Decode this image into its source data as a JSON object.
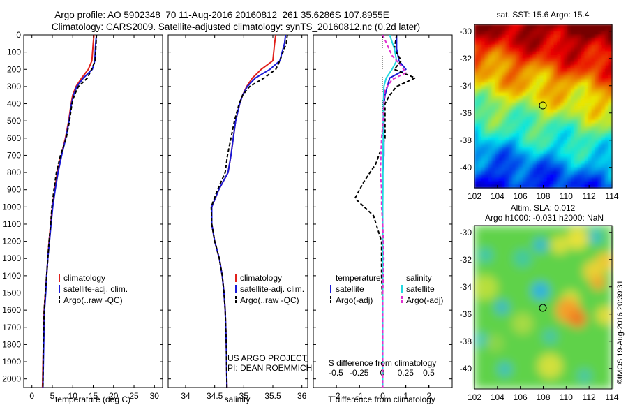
{
  "header": {
    "line1": "Argo profile: AO 5902348_70 11-Aug-2016 20160812_261 35.6286S 107.8955E",
    "line2": "Climatology: CARS2009. Satellite-adjusted climatology: synTS_20160812.nc (0.2d later)"
  },
  "colors": {
    "climatology": "#e0201b",
    "satellite": "#1a1ad6",
    "argo": "#000000",
    "salinity_sat": "#22d8e0",
    "salinity_argo": "#e030d0"
  },
  "chart_data": [
    {
      "id": "temperature",
      "type": "line",
      "xlabel": "temperature (deg C)",
      "ylabel": "",
      "xlim": [
        -2,
        32
      ],
      "ylim": [
        2050,
        0
      ],
      "xticks": [
        0,
        5,
        10,
        15,
        20,
        25,
        30
      ],
      "yticks": [
        0,
        100,
        200,
        300,
        400,
        500,
        600,
        700,
        800,
        900,
        1000,
        1100,
        1200,
        1300,
        1400,
        1500,
        1600,
        1700,
        1800,
        1900,
        2000
      ],
      "legend": [
        "climatology",
        "satellite-adj. clim.",
        "Argo(..raw -QC)"
      ],
      "legend_placement": "lower-center",
      "series": [
        {
          "name": "climatology",
          "color_key": "climatology",
          "dash": "solid",
          "x": [
            15.2,
            15.0,
            14.7,
            13.8,
            12.2,
            10.8,
            10.0,
            9.6,
            9.0,
            8.2,
            7.2,
            6.2,
            5.6,
            5.0,
            4.6,
            4.2,
            3.9,
            3.6,
            3.3,
            3.0,
            2.8,
            2.6
          ],
          "y": [
            0,
            50,
            150,
            200,
            250,
            300,
            350,
            400,
            500,
            600,
            700,
            800,
            900,
            1000,
            1100,
            1200,
            1300,
            1400,
            1500,
            1600,
            1800,
            2050
          ]
        },
        {
          "name": "satellite-adj. clim.",
          "color_key": "satellite",
          "dash": "solid",
          "x": [
            15.8,
            15.6,
            15.4,
            14.8,
            12.6,
            11.0,
            10.2,
            9.7,
            9.1,
            8.3,
            7.3,
            6.4,
            5.7,
            5.1,
            4.7,
            4.3,
            3.9,
            3.6,
            3.4,
            3.1,
            2.9,
            2.7
          ],
          "y": [
            0,
            50,
            150,
            200,
            250,
            300,
            350,
            400,
            500,
            600,
            700,
            800,
            900,
            1000,
            1100,
            1200,
            1300,
            1400,
            1500,
            1600,
            1800,
            2050
          ]
        },
        {
          "name": "Argo(..raw -QC)",
          "color_key": "argo",
          "dash": "dash",
          "x": [
            15.8,
            15.7,
            15.5,
            14.6,
            13.6,
            11.4,
            10.4,
            9.8,
            9.2,
            8.4,
            7.0,
            6.0,
            5.4,
            4.9,
            4.6,
            4.2,
            3.9,
            3.6,
            3.3,
            3.0,
            2.8,
            2.7
          ],
          "y": [
            0,
            50,
            150,
            200,
            250,
            300,
            350,
            400,
            500,
            600,
            700,
            800,
            900,
            1000,
            1100,
            1200,
            1300,
            1400,
            1500,
            1600,
            1800,
            2050
          ]
        }
      ]
    },
    {
      "id": "salinity",
      "type": "line",
      "xlabel": "salinity",
      "ylabel": "",
      "xlim": [
        33.7,
        36.1
      ],
      "ylim": [
        2050,
        0
      ],
      "xticks": [
        34,
        34.5,
        35,
        35.5,
        36
      ],
      "legend": [
        "climatology",
        "satellite-adj. clim.",
        "Argo(..raw -QC)"
      ],
      "legend_placement": "lower-center",
      "annotation": [
        "US ARGO PROJECT",
        "PI: DEAN ROEMMICH"
      ],
      "series": [
        {
          "name": "climatology",
          "color_key": "climatology",
          "dash": "solid",
          "x": [
            35.55,
            35.53,
            35.5,
            35.3,
            35.15,
            35.05,
            34.98,
            34.93,
            34.86,
            34.82,
            34.78,
            34.73,
            34.57,
            34.45,
            34.45,
            34.5,
            34.58,
            34.63,
            34.66,
            34.68,
            34.7,
            34.71
          ],
          "y": [
            0,
            50,
            150,
            200,
            250,
            300,
            350,
            400,
            500,
            600,
            700,
            800,
            900,
            1000,
            1100,
            1200,
            1300,
            1400,
            1500,
            1600,
            1800,
            2050
          ]
        },
        {
          "name": "satellite-adj. clim.",
          "color_key": "satellite",
          "dash": "solid",
          "x": [
            35.72,
            35.7,
            35.62,
            35.45,
            35.2,
            35.06,
            34.98,
            34.93,
            34.86,
            34.82,
            34.78,
            34.73,
            34.57,
            34.45,
            34.45,
            34.5,
            34.58,
            34.63,
            34.66,
            34.68,
            34.7,
            34.71
          ],
          "y": [
            0,
            50,
            150,
            200,
            250,
            300,
            350,
            400,
            500,
            600,
            700,
            800,
            900,
            1000,
            1100,
            1200,
            1300,
            1400,
            1500,
            1600,
            1800,
            2050
          ]
        },
        {
          "name": "Argo(..raw -QC)",
          "color_key": "argo",
          "dash": "dash",
          "x": [
            35.75,
            35.73,
            35.62,
            35.55,
            35.35,
            35.1,
            34.98,
            34.92,
            34.84,
            34.78,
            34.72,
            34.68,
            34.55,
            34.44,
            34.45,
            34.5,
            34.58,
            34.63,
            34.66,
            34.68,
            34.7,
            34.71
          ],
          "y": [
            0,
            50,
            150,
            200,
            250,
            300,
            350,
            400,
            500,
            600,
            700,
            800,
            900,
            1000,
            1100,
            1200,
            1300,
            1400,
            1500,
            1600,
            1800,
            2050
          ]
        }
      ]
    },
    {
      "id": "difference",
      "type": "line",
      "xlabel": "T difference from climatology",
      "top_label": "S difference from climatology",
      "ylabel": "",
      "xlim": [
        -3,
        3
      ],
      "ylim": [
        2050,
        0
      ],
      "xticks": [
        -2,
        -1,
        0,
        1,
        2
      ],
      "top_ticks": [
        -0.5,
        -0.25,
        0,
        0.25,
        0.5
      ],
      "top_tick_labels": [
        "-0.5",
        "-0.25",
        "0",
        "0.25",
        "0.5"
      ],
      "legend_groups": [
        {
          "title": "temperature",
          "items": [
            "satellite",
            "Argo(-adj)"
          ]
        },
        {
          "title": "salinity",
          "items": [
            "satellite",
            "Argo(-adj)"
          ]
        }
      ],
      "series": [
        {
          "name": "temperature satellite",
          "color_key": "satellite",
          "dash": "solid",
          "x": [
            0.6,
            0.6,
            0.7,
            1.0,
            0.3,
            0.2,
            0.1,
            0.05,
            0.05,
            0.05,
            0.05,
            0.0,
            0.0,
            0.0,
            0.0,
            0.0,
            0.0,
            0.0,
            0.0
          ],
          "y": [
            0,
            80,
            150,
            200,
            250,
            300,
            350,
            400,
            500,
            600,
            700,
            800,
            900,
            1000,
            1200,
            1400,
            1600,
            1800,
            2050
          ]
        },
        {
          "name": "temperature Argo(-adj)",
          "color_key": "argo",
          "dash": "dash",
          "x": [
            0.6,
            0.5,
            0.8,
            0.5,
            1.4,
            0.6,
            0.3,
            0.1,
            0.1,
            0.1,
            -0.3,
            -0.8,
            -1.2,
            -0.4,
            -0.05,
            -0.05,
            0.0,
            0.0,
            0.0
          ],
          "y": [
            0,
            80,
            150,
            200,
            250,
            300,
            350,
            400,
            500,
            600,
            750,
            850,
            950,
            1050,
            1200,
            1400,
            1600,
            1800,
            2050
          ]
        },
        {
          "name": "salinity satellite",
          "color_key": "salinity_sat",
          "dash": "solid",
          "x": [
            0.3,
            0.5,
            0.6,
            0.4,
            0.15,
            0.05,
            0.03,
            0.02,
            0.02,
            0.01,
            0.01,
            0.01,
            0.0,
            0.0,
            0.0,
            0.0,
            0.0
          ],
          "y": [
            0,
            80,
            150,
            200,
            250,
            300,
            400,
            500,
            600,
            700,
            800,
            900,
            1000,
            1200,
            1500,
            1800,
            2050
          ]
        },
        {
          "name": "salinity Argo(-adj)",
          "color_key": "salinity_argo",
          "dash": "dash",
          "x": [
            0.0,
            0.4,
            0.8,
            1.0,
            0.4,
            0.1,
            0.05,
            0.02,
            -0.05,
            -0.1,
            -0.05,
            -0.05,
            0.0,
            0.05,
            0.0,
            0.0,
            0.0
          ],
          "y": [
            0,
            120,
            180,
            220,
            260,
            320,
            400,
            500,
            600,
            800,
            900,
            1000,
            1100,
            1300,
            1500,
            1800,
            2050
          ]
        }
      ]
    },
    {
      "id": "sst_map",
      "type": "heatmap",
      "title": "sat. SST: 15.6 Argo: 15.4",
      "xlim": [
        102,
        114
      ],
      "ylim": [
        -41.5,
        -29.5
      ],
      "xticks": [
        102,
        104,
        106,
        108,
        110,
        112,
        114
      ],
      "yticks": [
        -30,
        -32,
        -34,
        -36,
        -38,
        -40
      ],
      "marker": {
        "lon": 107.9,
        "lat": -35.6
      }
    },
    {
      "id": "sla_map",
      "type": "heatmap",
      "title": "Altim. SLA: 0.012",
      "subtitle": "Argo h1000: -0.031 h2000: NaN",
      "xlim": [
        102,
        114
      ],
      "ylim": [
        -41.5,
        -29.5
      ],
      "xticks": [
        102,
        104,
        106,
        108,
        110,
        112,
        114
      ],
      "yticks": [
        -30,
        -32,
        -34,
        -36,
        -38,
        -40
      ],
      "marker": {
        "lon": 107.9,
        "lat": -35.6
      }
    }
  ],
  "side_label": "©IMOS 19-Aug-2016 20:39:31"
}
